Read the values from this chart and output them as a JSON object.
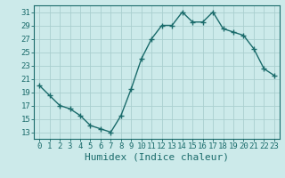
{
  "x": [
    0,
    1,
    2,
    3,
    4,
    5,
    6,
    7,
    8,
    9,
    10,
    11,
    12,
    13,
    14,
    15,
    16,
    17,
    18,
    19,
    20,
    21,
    22,
    23
  ],
  "y": [
    20,
    18.5,
    17,
    16.5,
    15.5,
    14,
    13.5,
    13,
    15.5,
    19.5,
    24,
    27,
    29,
    29,
    31,
    29.5,
    29.5,
    31,
    28.5,
    28,
    27.5,
    25.5,
    22.5,
    21.5
  ],
  "line_color": "#1a6b6b",
  "marker": "+",
  "marker_size": 4,
  "marker_lw": 1.0,
  "bg_color": "#cceaea",
  "grid_color": "#aacfcf",
  "xlabel": "Humidex (Indice chaleur)",
  "xlim": [
    -0.5,
    23.5
  ],
  "ylim": [
    12,
    32
  ],
  "yticks": [
    13,
    15,
    17,
    19,
    21,
    23,
    25,
    27,
    29,
    31
  ],
  "xticks": [
    0,
    1,
    2,
    3,
    4,
    5,
    6,
    7,
    8,
    9,
    10,
    11,
    12,
    13,
    14,
    15,
    16,
    17,
    18,
    19,
    20,
    21,
    22,
    23
  ],
  "xlabel_fontsize": 8,
  "tick_fontsize": 6.5,
  "line_width": 1.0,
  "axes_color": "#1a6b6b"
}
